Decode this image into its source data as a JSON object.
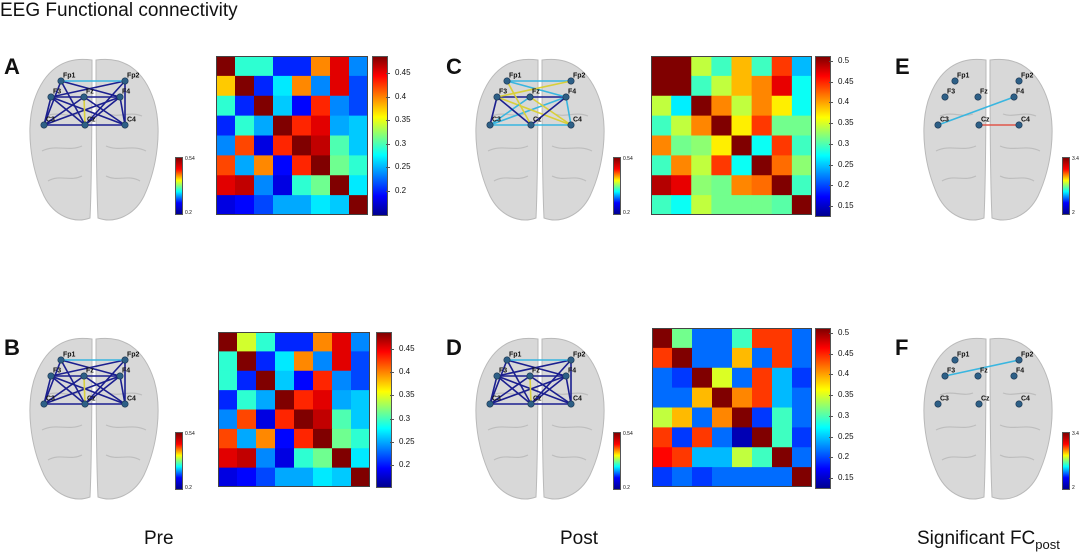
{
  "title": "EEG Functional connectivity",
  "column_labels": {
    "pre": "Pre",
    "post": "Post",
    "sig_main": "Significant FC",
    "sig_sub": "post"
  },
  "node_labels": [
    "Fp1",
    "Fp2",
    "F3",
    "Fz",
    "F4",
    "C3",
    "Cz",
    "C4"
  ],
  "panels": [
    {
      "id": "A",
      "label": "A",
      "minibar": {
        "max": "0.54",
        "min": "0.2"
      },
      "cbar": {
        "ticks": [
          "0.45",
          "0.4",
          "0.35",
          "0.3",
          "0.25",
          "0.2"
        ],
        "min": 0.17,
        "max": 0.48
      },
      "matrix": [
        [
          0.48,
          0.3,
          0.3,
          0.22,
          0.22,
          0.4,
          0.45,
          0.25
        ],
        [
          0.38,
          0.48,
          0.22,
          0.28,
          0.4,
          0.25,
          0.45,
          0.23
        ],
        [
          0.3,
          0.22,
          0.48,
          0.27,
          0.21,
          0.43,
          0.25,
          0.23
        ],
        [
          0.22,
          0.3,
          0.26,
          0.48,
          0.43,
          0.45,
          0.26,
          0.27
        ],
        [
          0.25,
          0.42,
          0.2,
          0.43,
          0.48,
          0.46,
          0.31,
          0.27
        ],
        [
          0.42,
          0.26,
          0.4,
          0.21,
          0.43,
          0.48,
          0.32,
          0.3
        ],
        [
          0.45,
          0.46,
          0.25,
          0.2,
          0.3,
          0.32,
          0.48,
          0.28
        ],
        [
          0.2,
          0.21,
          0.23,
          0.26,
          0.26,
          0.28,
          0.27,
          0.48
        ]
      ]
    },
    {
      "id": "B",
      "label": "B",
      "minibar": {
        "max": "0.54",
        "min": "0.2"
      },
      "cbar": {
        "ticks": [
          "0.45",
          "0.4",
          "0.35",
          "0.3",
          "0.25",
          "0.2"
        ],
        "min": 0.17,
        "max": 0.48
      },
      "matrix": [
        [
          0.48,
          0.35,
          0.3,
          0.22,
          0.22,
          0.4,
          0.45,
          0.25
        ],
        [
          0.3,
          0.48,
          0.22,
          0.28,
          0.4,
          0.25,
          0.45,
          0.23
        ],
        [
          0.3,
          0.22,
          0.48,
          0.27,
          0.21,
          0.43,
          0.25,
          0.23
        ],
        [
          0.22,
          0.3,
          0.26,
          0.48,
          0.43,
          0.45,
          0.26,
          0.27
        ],
        [
          0.25,
          0.42,
          0.2,
          0.43,
          0.48,
          0.46,
          0.31,
          0.27
        ],
        [
          0.42,
          0.26,
          0.4,
          0.21,
          0.43,
          0.48,
          0.32,
          0.3
        ],
        [
          0.45,
          0.46,
          0.25,
          0.2,
          0.3,
          0.32,
          0.48,
          0.28
        ],
        [
          0.2,
          0.21,
          0.23,
          0.26,
          0.26,
          0.28,
          0.27,
          0.48
        ]
      ]
    },
    {
      "id": "C",
      "label": "C",
      "minibar": {
        "max": "0.54",
        "min": "0.2"
      },
      "cbar": {
        "ticks": [
          "0.5",
          "0.45",
          "0.4",
          "0.35",
          "0.3",
          "0.25",
          "0.2",
          "0.15"
        ],
        "min": 0.13,
        "max": 0.52
      },
      "matrix": [
        [
          0.52,
          0.52,
          0.35,
          0.3,
          0.4,
          0.3,
          0.45,
          0.25
        ],
        [
          0.52,
          0.52,
          0.3,
          0.35,
          0.4,
          0.42,
          0.48,
          0.28
        ],
        [
          0.35,
          0.27,
          0.52,
          0.42,
          0.35,
          0.42,
          0.38,
          0.28
        ],
        [
          0.3,
          0.35,
          0.42,
          0.52,
          0.38,
          0.45,
          0.32,
          0.32
        ],
        [
          0.42,
          0.32,
          0.33,
          0.38,
          0.52,
          0.28,
          0.45,
          0.3
        ],
        [
          0.3,
          0.42,
          0.35,
          0.45,
          0.28,
          0.52,
          0.43,
          0.33
        ],
        [
          0.5,
          0.48,
          0.33,
          0.32,
          0.42,
          0.43,
          0.52,
          0.3
        ],
        [
          0.3,
          0.28,
          0.35,
          0.32,
          0.32,
          0.32,
          0.31,
          0.52
        ]
      ]
    },
    {
      "id": "D",
      "label": "D",
      "minibar": {
        "max": "0.54",
        "min": "0.2"
      },
      "cbar": {
        "ticks": [
          "0.5",
          "0.45",
          "0.4",
          "0.35",
          "0.3",
          "0.25",
          "0.2",
          "0.15"
        ],
        "min": 0.13,
        "max": 0.52
      },
      "matrix": [
        [
          0.52,
          0.32,
          0.22,
          0.22,
          0.3,
          0.45,
          0.45,
          0.22
        ],
        [
          0.45,
          0.52,
          0.22,
          0.22,
          0.4,
          0.22,
          0.45,
          0.22
        ],
        [
          0.22,
          0.2,
          0.52,
          0.36,
          0.22,
          0.45,
          0.25,
          0.2
        ],
        [
          0.22,
          0.22,
          0.4,
          0.52,
          0.42,
          0.45,
          0.25,
          0.22
        ],
        [
          0.35,
          0.4,
          0.22,
          0.42,
          0.52,
          0.2,
          0.3,
          0.22
        ],
        [
          0.45,
          0.2,
          0.45,
          0.22,
          0.15,
          0.52,
          0.3,
          0.2
        ],
        [
          0.47,
          0.45,
          0.25,
          0.25,
          0.35,
          0.3,
          0.52,
          0.22
        ],
        [
          0.2,
          0.22,
          0.2,
          0.22,
          0.22,
          0.22,
          0.22,
          0.52
        ]
      ]
    },
    {
      "id": "E",
      "label": "E",
      "minibar": {
        "max": "3.4",
        "min": "2"
      }
    },
    {
      "id": "F",
      "label": "F",
      "minibar": {
        "max": "3.4",
        "min": "2"
      }
    }
  ],
  "colors": {
    "edge_dark": "#1b1f8f",
    "edge_cyan": "#39b6e0",
    "edge_yellow": "#d9cf3a",
    "edge_red": "#e0574a",
    "node": "#2d5f86",
    "brain": "#d8d8d8"
  }
}
